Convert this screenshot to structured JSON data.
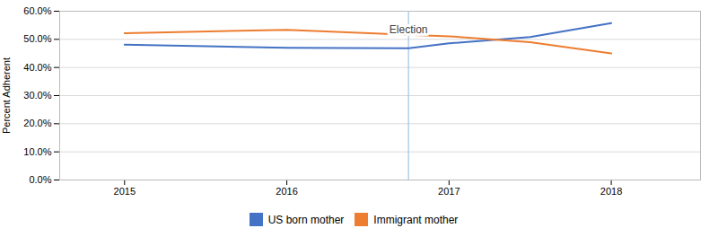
{
  "chart_data": {
    "type": "line",
    "x": [
      2015,
      2016,
      2016.75,
      2017,
      2017.5,
      2018
    ],
    "series": [
      {
        "name": "US born mother",
        "color": "#4472C4",
        "values": [
          0.481,
          0.47,
          0.468,
          0.486,
          0.508,
          0.558
        ]
      },
      {
        "name": "Immigrant mother",
        "color": "#ED7D31",
        "values": [
          0.522,
          0.534,
          0.516,
          0.511,
          0.49,
          0.45
        ]
      }
    ],
    "ylabel": "Percent Adherent",
    "xlim": [
      2014.6,
      2018.55
    ],
    "xticks": [
      2015,
      2016,
      2017,
      2018
    ],
    "ylim": [
      0.0,
      0.6
    ],
    "yticks": [
      {
        "value": 0.0,
        "label": "0.0%"
      },
      {
        "value": 0.1,
        "label": "10.0%"
      },
      {
        "value": 0.2,
        "label": "20.0%"
      },
      {
        "value": 0.3,
        "label": "30.0%"
      },
      {
        "value": 0.4,
        "label": "40.0%"
      },
      {
        "value": 0.5,
        "label": "50.0%"
      },
      {
        "value": 0.6,
        "label": "60.0%"
      }
    ],
    "grid": "y",
    "legend": "bottom",
    "annotations": [
      {
        "text": "Election",
        "x": 2016.75,
        "color": "#9DC3E6"
      }
    ]
  }
}
